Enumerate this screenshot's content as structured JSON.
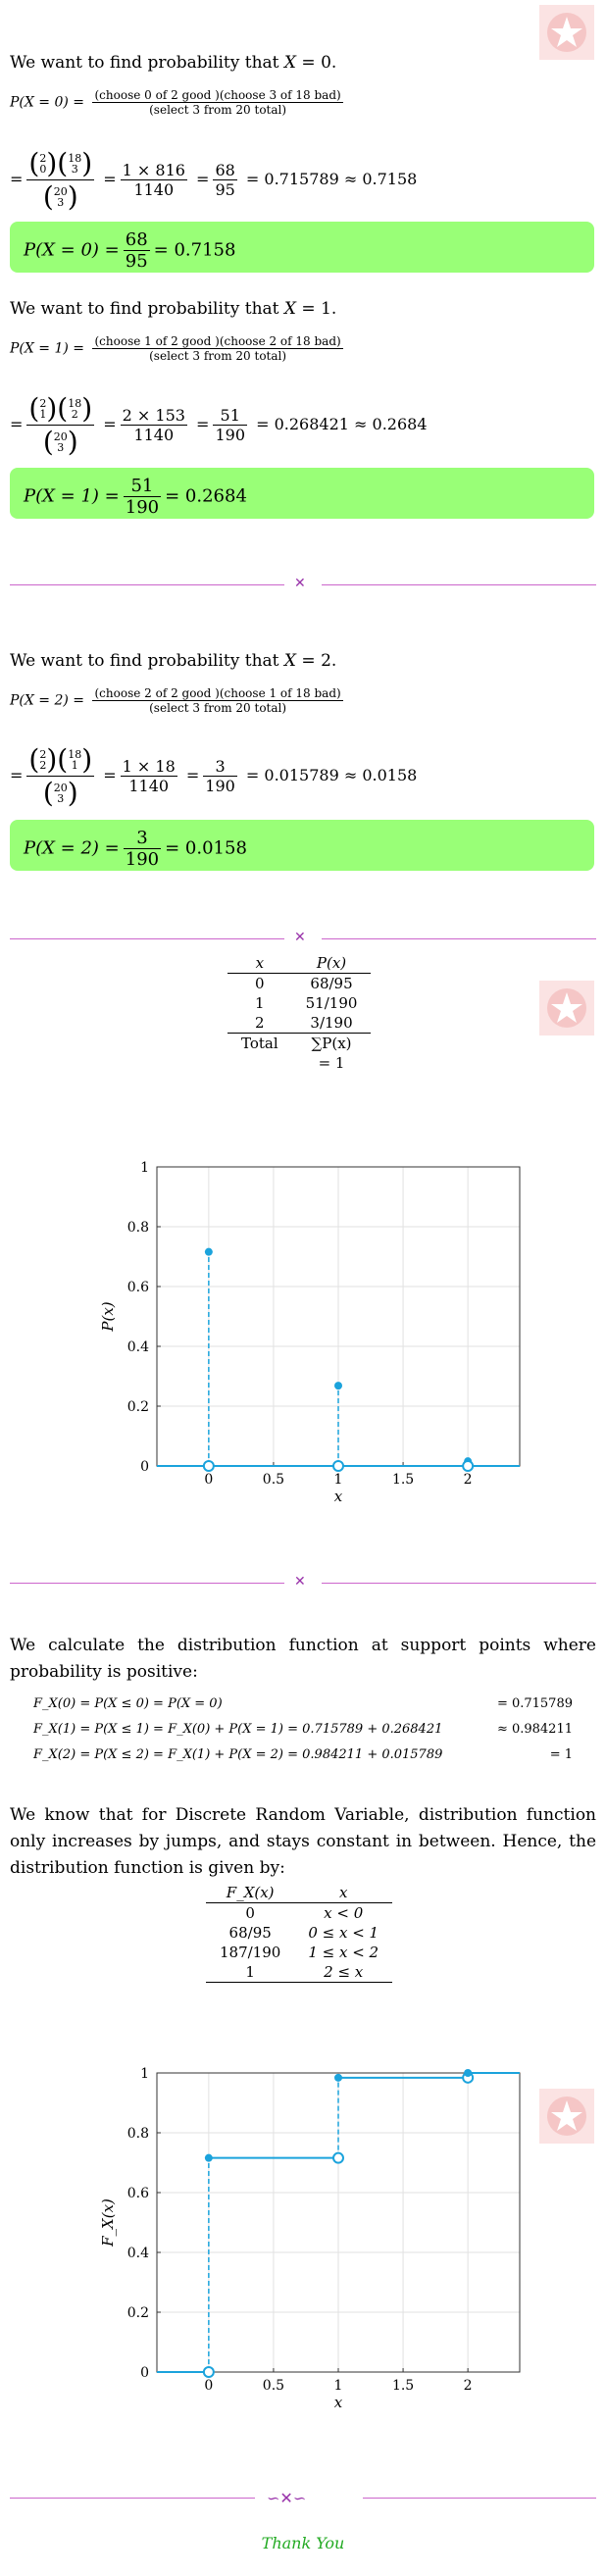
{
  "sections": [
    {
      "intro": "We want to find probability that",
      "x_val": "0",
      "def_lhs": "P(X = 0) =",
      "def_num": "(choose 0 of 2 good )(choose 3 of 18 bad)",
      "def_den": "(select 3 from 20 total)",
      "b1": [
        "2",
        "0"
      ],
      "b2": [
        "18",
        "3"
      ],
      "bd": [
        "20",
        "3"
      ],
      "step_num": "1 × 816",
      "step_den": "1140",
      "res_num": "68",
      "res_den": "95",
      "approx": "= 0.715789 ≈ 0.7158",
      "box_lhs": "P(X = 0) =",
      "box_num": "68",
      "box_den": "95",
      "box_val": "= 0.7158"
    },
    {
      "intro": "We want to find probability that",
      "x_val": "1",
      "def_lhs": "P(X = 1) =",
      "def_num": "(choose 1 of 2 good )(choose 2 of 18 bad)",
      "def_den": "(select 3 from 20 total)",
      "b1": [
        "2",
        "1"
      ],
      "b2": [
        "18",
        "2"
      ],
      "bd": [
        "20",
        "3"
      ],
      "step_num": "2 × 153",
      "step_den": "1140",
      "res_num": "51",
      "res_den": "190",
      "approx": "= 0.268421 ≈ 0.2684",
      "box_lhs": "P(X = 1) =",
      "box_num": "51",
      "box_den": "190",
      "box_val": "= 0.2684"
    },
    {
      "intro": "We want to find probability that",
      "x_val": "2",
      "def_lhs": "P(X = 2) =",
      "def_num": "(choose 2 of 2 good )(choose 1 of 18 bad)",
      "def_den": "(select 3 from 20 total)",
      "b1": [
        "2",
        "2"
      ],
      "b2": [
        "18",
        "1"
      ],
      "bd": [
        "20",
        "3"
      ],
      "step_num": "1 × 18",
      "step_den": "1140",
      "res_num": "3",
      "res_den": "190",
      "approx": "= 0.015789 ≈ 0.0158",
      "box_lhs": "P(X = 2) =",
      "box_num": "3",
      "box_den": "190",
      "box_val": "= 0.0158"
    }
  ],
  "pmf_table": {
    "headers": [
      "x",
      "P(x)"
    ],
    "rows": [
      [
        "0",
        "68/95"
      ],
      [
        "1",
        "51/190"
      ],
      [
        "2",
        "3/190"
      ]
    ],
    "total_label": "Total",
    "total_value": "∑P(x)",
    "total_eq": "= 1"
  },
  "chart_data": [
    {
      "type": "stem",
      "x": [
        0,
        1,
        2
      ],
      "values": [
        0.715789,
        0.268421,
        0.015789
      ],
      "xlabel": "x",
      "ylabel": "P(x)",
      "xlim": [
        -0.4,
        2.4
      ],
      "ylim": [
        0,
        1
      ],
      "xticks": [
        "0",
        "0.5",
        "1",
        "1.5",
        "2"
      ],
      "yticks": [
        "0",
        "0.2",
        "0.4",
        "0.6",
        "0.8",
        "1"
      ],
      "grid": true,
      "color": "#1ba3dc"
    },
    {
      "type": "step",
      "x": [
        0,
        1,
        2
      ],
      "values": [
        0.715789,
        0.984211,
        1
      ],
      "xlabel": "x",
      "ylabel": "F_X(x)",
      "xlim": [
        -0.4,
        2.4
      ],
      "ylim": [
        0,
        1
      ],
      "xticks": [
        "0",
        "0.5",
        "1",
        "1.5",
        "2"
      ],
      "yticks": [
        "0",
        "0.2",
        "0.4",
        "0.6",
        "0.8",
        "1"
      ],
      "grid": true,
      "color": "#1ba3dc"
    }
  ],
  "cdf_intro": "We calculate the distribution function at support points where probability is positive:",
  "cdf_lines": [
    {
      "lhs": "F_X(0) = P(X ≤ 0) = P(X = 0)",
      "rhs": "= 0.715789"
    },
    {
      "lhs": "F_X(1) = P(X ≤ 1) = F_X(0) + P(X = 1) = 0.715789 + 0.268421",
      "rhs": "≈ 0.984211"
    },
    {
      "lhs": "F_X(2) = P(X ≤ 2) = F_X(1) + P(X = 2) = 0.984211 + 0.015789",
      "rhs": "= 1"
    }
  ],
  "cdf_explain": "We know that for Discrete Random Variable, distribution function only increases by jumps, and stays constant in between. Hence, the distribution function is given by:",
  "cdf_table": {
    "headers": [
      "F_X(x)",
      "x"
    ],
    "rows": [
      [
        "0",
        "x < 0"
      ],
      [
        "68/95",
        "0 ≤ x < 1"
      ],
      [
        "187/190",
        "1 ≤ x < 2"
      ],
      [
        "1",
        "2 ≤ x"
      ]
    ]
  },
  "thanks": "Thank You",
  "colors": {
    "highlight": "#99ff77",
    "divider": "#cc66cc",
    "plot": "#1ba3dc",
    "badge": "#f5c6c6",
    "thanks": "#22aa22"
  }
}
